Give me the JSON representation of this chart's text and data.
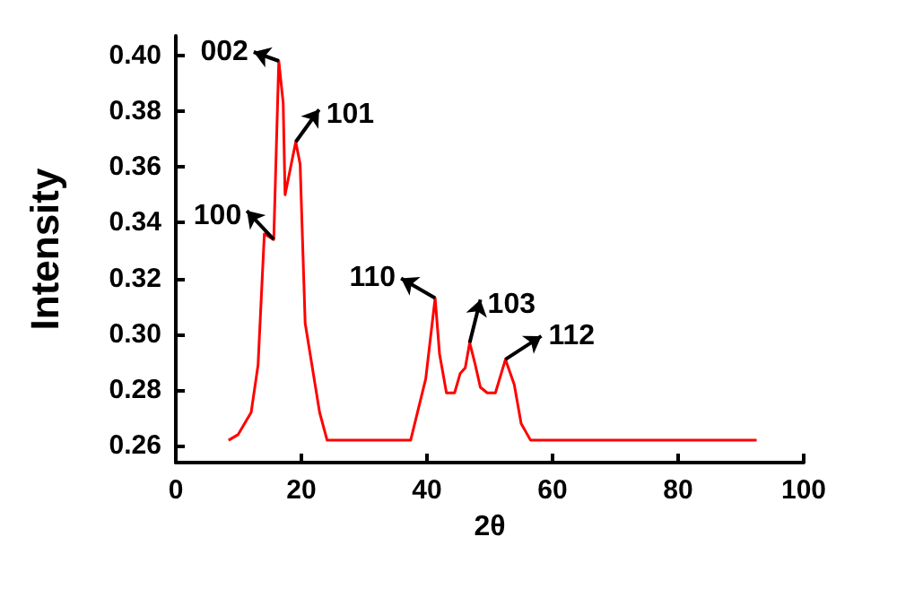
{
  "chart_data": {
    "type": "line",
    "xlabel": "2θ",
    "ylabel": "Intensity",
    "x": [
      8.4,
      9.9,
      12,
      13.1,
      14.1,
      15.6,
      16.4,
      17.1,
      17.4,
      19.1,
      19.8,
      20.6,
      22.9,
      24.1,
      37.4,
      39.8,
      41.3,
      42,
      43.1,
      44.4,
      45.3,
      46.1,
      46.8,
      47.7,
      48.5,
      49.6,
      50.9,
      52.5,
      53.9,
      55,
      56.5,
      92.5
    ],
    "series": [
      {
        "color": "#ff0000",
        "values": [
          0.262,
          0.264,
          0.272,
          0.289,
          0.336,
          0.334,
          0.398,
          0.383,
          0.35,
          0.369,
          0.361,
          0.304,
          0.272,
          0.262,
          0.262,
          0.284,
          0.313,
          0.293,
          0.279,
          0.279,
          0.286,
          0.288,
          0.297,
          0.289,
          0.281,
          0.279,
          0.279,
          0.291,
          0.282,
          0.268,
          0.262,
          0.262
        ]
      }
    ],
    "xlim": [
      0,
      100
    ],
    "xticks": [
      0,
      20,
      40,
      60,
      80,
      100
    ],
    "ylim": [
      0.254,
      0.407
    ],
    "yticks": [
      0.26,
      0.28,
      {
        "value": 0.3,
        "label": "0.30"
      },
      0.32,
      0.34,
      0.36,
      0.38,
      {
        "value": 0.4,
        "label": "0.40"
      }
    ],
    "grid": false,
    "marker": "none",
    "line_style": "solid",
    "annotations": [
      {
        "text": "002",
        "x": 16.4,
        "y": 0.398
      },
      {
        "text": "101",
        "x": 19.1,
        "y": 0.369
      },
      {
        "text": "100",
        "x": 15.6,
        "y": 0.334
      },
      {
        "text": "110",
        "x": 41.3,
        "y": 0.313
      },
      {
        "text": "103",
        "x": 46.8,
        "y": 0.297
      },
      {
        "text": "112",
        "x": 52.5,
        "y": 0.291
      }
    ]
  }
}
